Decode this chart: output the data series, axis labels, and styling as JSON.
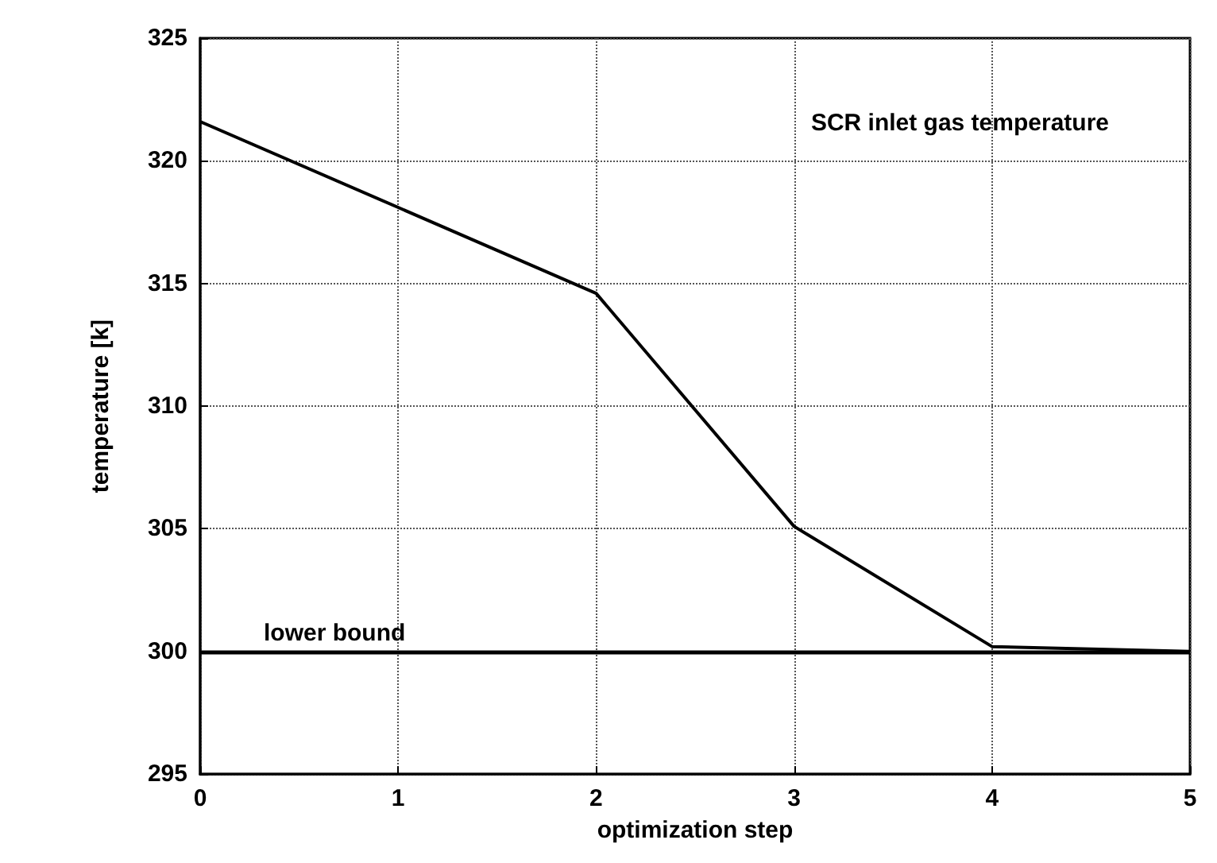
{
  "chart_data": {
    "type": "line",
    "xlabel": "optimization step",
    "ylabel": "temperature [k]",
    "x": [
      0,
      1,
      2,
      3,
      4,
      5
    ],
    "series": [
      {
        "color": "#000000",
        "values": [
          321.6,
          318.1,
          314.6,
          305.1,
          300.2,
          300.0
        ]
      }
    ],
    "xlim": [
      0,
      5
    ],
    "xticks": [
      0,
      1,
      2,
      3,
      4,
      5
    ],
    "ylim": [
      295,
      325
    ],
    "yticks": [
      295,
      300,
      305,
      310,
      315,
      320,
      325
    ],
    "grid": true,
    "marker": "none",
    "line_style": "solid",
    "ref_lines": [
      {
        "axis": "y",
        "value": 300,
        "label": "lower bound",
        "color": "#000000"
      }
    ],
    "annotations": [
      "SCR inlet gas temperature"
    ]
  }
}
